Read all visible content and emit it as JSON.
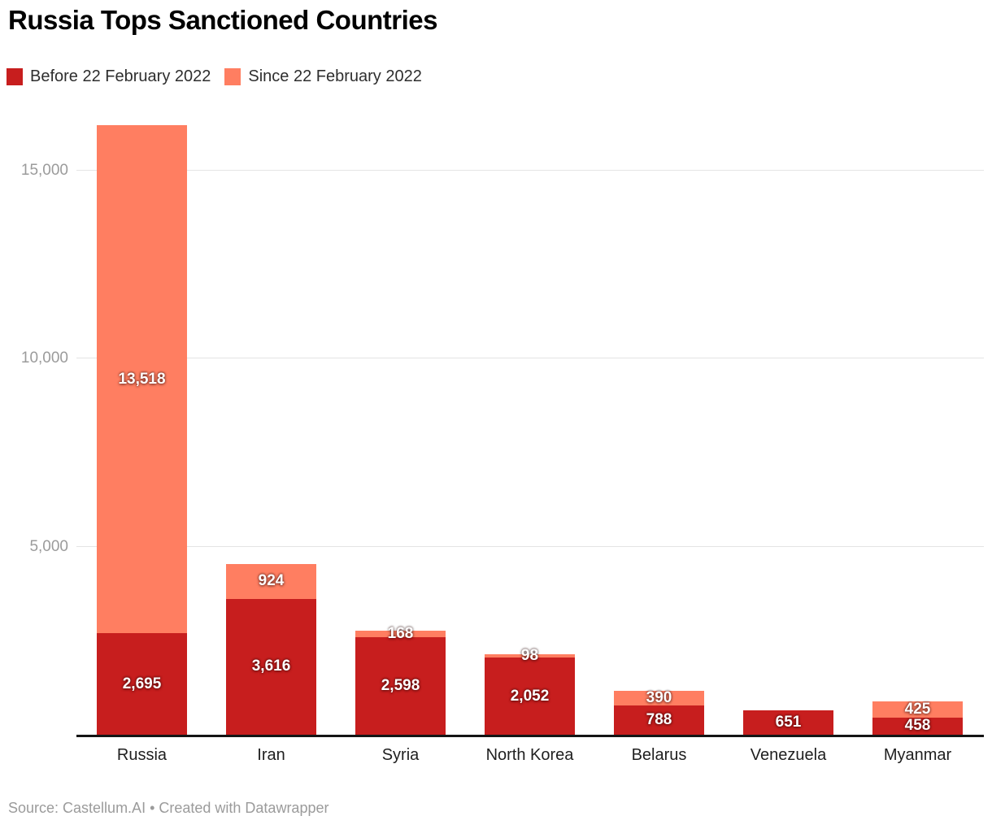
{
  "header": {
    "title": "Russia Tops Sanctioned Countries"
  },
  "legend": {
    "items": [
      {
        "label": "Before 22 February 2022",
        "color": "#c71e1e"
      },
      {
        "label": "Since 22 February 2022",
        "color": "#ff7e61"
      }
    ]
  },
  "footer": {
    "text": "Source: Castellum.AI • Created with Datawrapper"
  },
  "chart_data": {
    "type": "bar",
    "stacked": true,
    "title": "Russia Tops Sanctioned Countries",
    "categories": [
      "Russia",
      "Iran",
      "Syria",
      "North Korea",
      "Belarus",
      "Venezuela",
      "Myanmar"
    ],
    "series": [
      {
        "name": "Before 22 February 2022",
        "color": "#c71e1e",
        "values": [
          2695,
          3616,
          2598,
          2052,
          788,
          651,
          458
        ],
        "labels": [
          "2,695",
          "3,616",
          "2,598",
          "2,052",
          "788",
          "651",
          "458"
        ]
      },
      {
        "name": "Since 22 February 2022",
        "color": "#ff7e61",
        "values": [
          13518,
          924,
          168,
          98,
          390,
          0,
          425
        ],
        "labels": [
          "13,518",
          "924",
          "168",
          "98",
          "390",
          "",
          "425"
        ]
      }
    ],
    "y_axis": {
      "ticks": [
        {
          "value": 5000,
          "label": "5,000"
        },
        {
          "value": 10000,
          "label": "10,000"
        },
        {
          "value": 15000,
          "label": "15,000"
        }
      ],
      "range": [
        0,
        16945
      ]
    },
    "grid": true,
    "legend_position": "top",
    "value_label_color": "#ffffff",
    "axis_tick_color": "#9b9b9b"
  }
}
